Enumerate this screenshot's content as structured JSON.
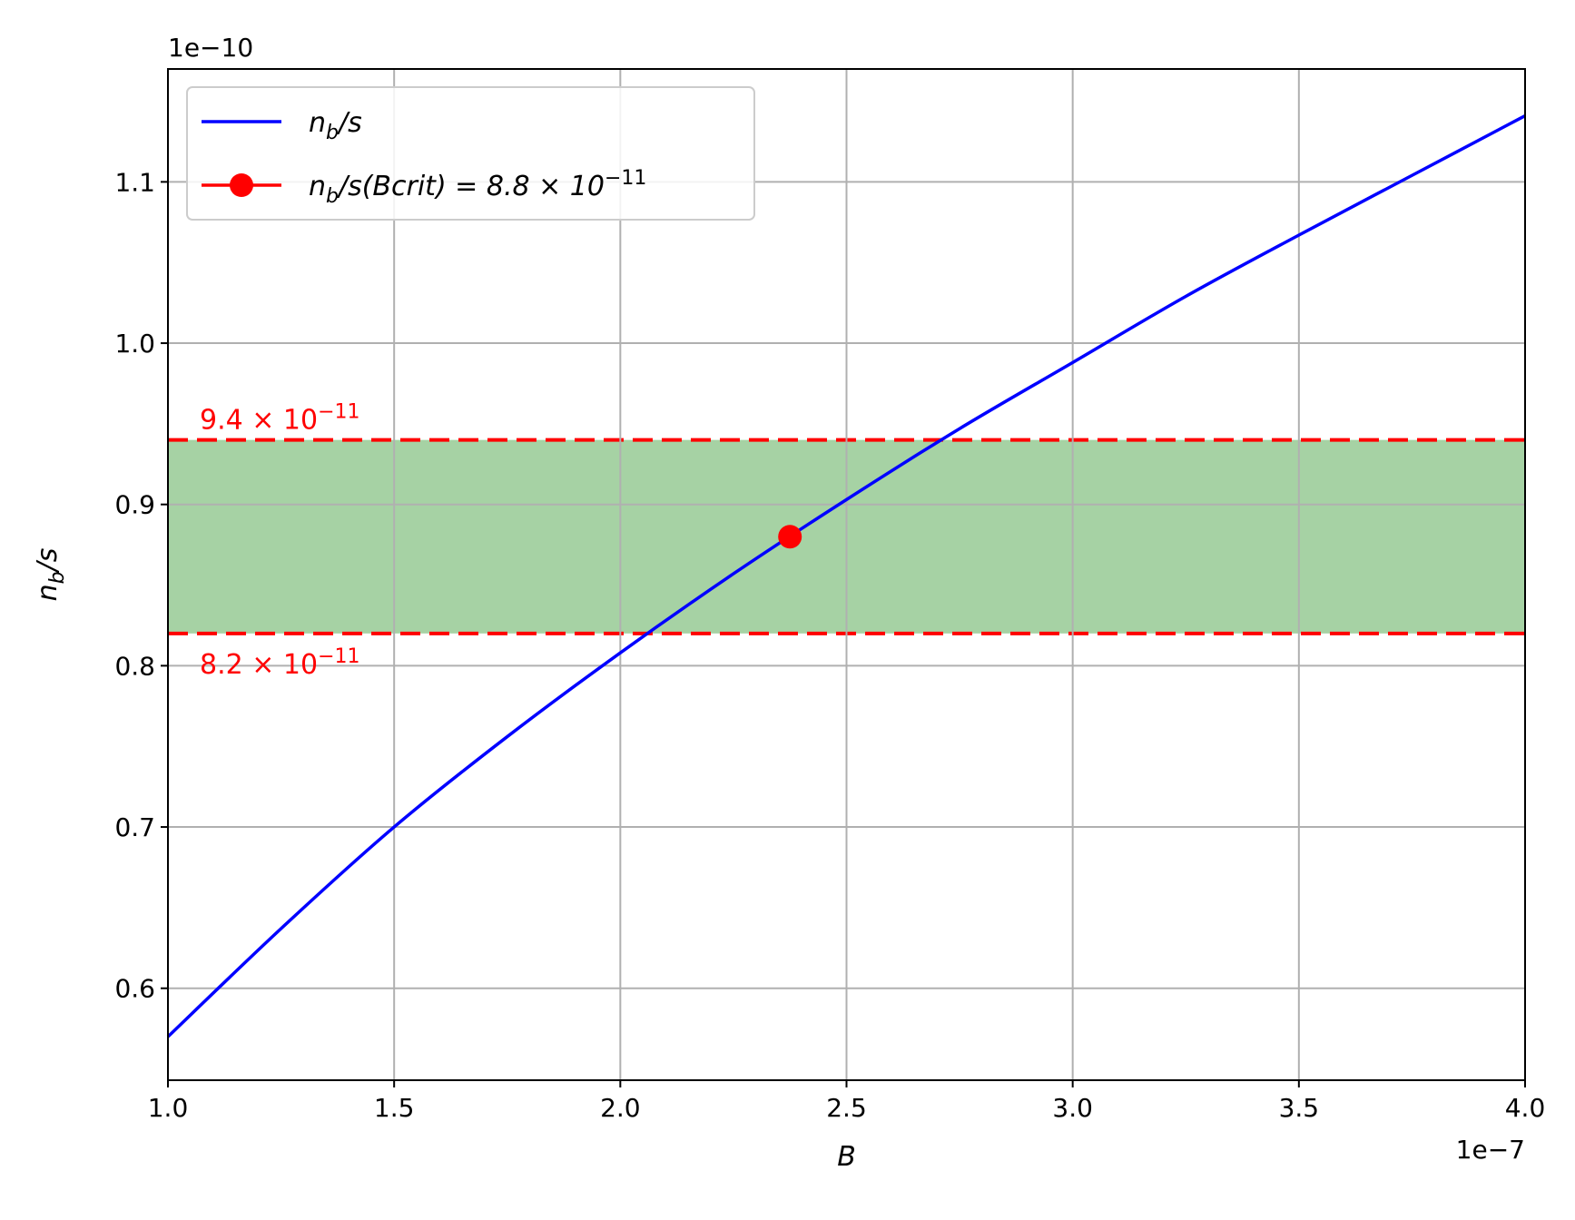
{
  "chart_data": {
    "type": "line",
    "xlabel": "B",
    "ylabel": "n_b/s",
    "x_offset_text": "1e−7",
    "y_offset_text": "1e−10",
    "x_scale_factor": 1e-07,
    "y_scale_factor": 1e-10,
    "xlim": [
      1.0,
      4.0
    ],
    "ylim": [
      0.543,
      1.17
    ],
    "x_ticks": [
      "1.0",
      "1.5",
      "2.0",
      "2.5",
      "3.0",
      "3.5",
      "4.0"
    ],
    "y_ticks": [
      "0.6",
      "0.7",
      "0.8",
      "0.9",
      "1.0",
      "1.1"
    ],
    "grid": true,
    "legend": {
      "placement": "top-left",
      "entries": [
        {
          "label": "n_b/s",
          "color": "#0000ff",
          "marker": "none"
        },
        {
          "label": "n_b/s(B_crit) = 8.8 × 10^−11",
          "color": "#ff0000",
          "marker": "circle"
        }
      ]
    },
    "series": [
      {
        "name": "n_b/s",
        "color": "#0000ff",
        "x": [
          1.0,
          1.25,
          1.5,
          1.75,
          2.0,
          2.25,
          2.5,
          2.75,
          3.0,
          3.25,
          3.5,
          3.75,
          4.0
        ],
        "y": [
          0.57,
          0.637,
          0.7,
          0.756,
          0.808,
          0.857,
          0.903,
          0.947,
          0.988,
          1.029,
          1.067,
          1.104,
          1.141
        ]
      }
    ],
    "critical_point": {
      "x": 2.375,
      "y": 0.88,
      "color": "#ff0000"
    },
    "band": {
      "y_low": 0.82,
      "y_high": 0.94,
      "fill_color": "#a6d2a4",
      "line_color": "#ff0000",
      "label_low": "8.2 × 10^−11",
      "label_high": "9.4 × 10^−11"
    }
  }
}
